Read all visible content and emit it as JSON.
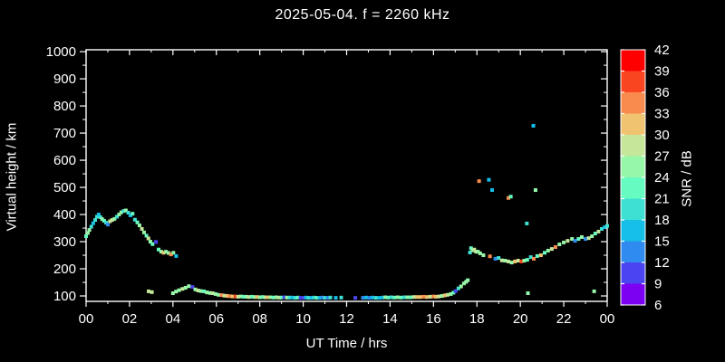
{
  "title": "2025-05-04. f = 2260 kHz",
  "chart_data": {
    "type": "scatter",
    "xlabel": "UT Time / hrs",
    "ylabel": "Virtual height / km",
    "colorbar_label": "SNR / dB",
    "xlim": [
      0,
      24
    ],
    "ylim": [
      80,
      1007
    ],
    "x_major_ticks": [
      0,
      2,
      4,
      6,
      8,
      10,
      12,
      14,
      16,
      18,
      20,
      22,
      24
    ],
    "x_tick_labels": [
      "00",
      "02",
      "04",
      "06",
      "08",
      "10",
      "12",
      "14",
      "16",
      "18",
      "20",
      "22",
      "00"
    ],
    "x_minor_ticks": [
      1,
      3,
      5,
      7,
      9,
      11,
      13,
      15,
      17,
      19,
      21,
      23
    ],
    "y_major_ticks": [
      100,
      200,
      300,
      400,
      500,
      600,
      700,
      800,
      900,
      1000
    ],
    "y_minor_ticks": [
      150,
      250,
      350,
      450,
      550,
      650,
      750,
      850,
      950
    ],
    "grid": false,
    "snr_min": 6,
    "snr_max": 42,
    "snr_step": 3,
    "colorbar_tick_labels": [
      "42",
      "39",
      "36",
      "33",
      "30",
      "27",
      "24",
      "21",
      "18",
      "15",
      "12",
      "9",
      "6"
    ],
    "snr_colors_low_to_high": [
      "#7c00f2",
      "#4a45f0",
      "#2f8bef",
      "#15bfe8",
      "#3ee0d3",
      "#65fbc1",
      "#97f7a8",
      "#c6e699",
      "#efc36f",
      "#f98b4e",
      "#fa4521",
      "#fe0000"
    ],
    "background_color": "#000000",
    "axis_color": "#ffffff",
    "points_t_h_snr": [
      [
        0.0,
        320,
        22
      ],
      [
        0.08,
        332,
        25
      ],
      [
        0.15,
        343,
        25
      ],
      [
        0.24,
        355,
        19
      ],
      [
        0.33,
        368,
        16
      ],
      [
        0.42,
        380,
        19
      ],
      [
        0.5,
        392,
        19
      ],
      [
        0.58,
        400,
        16
      ],
      [
        0.66,
        390,
        19
      ],
      [
        0.74,
        383,
        25
      ],
      [
        0.83,
        377,
        22
      ],
      [
        0.92,
        370,
        19
      ],
      [
        1.0,
        363,
        13
      ],
      [
        1.1,
        375,
        28
      ],
      [
        1.2,
        380,
        28
      ],
      [
        1.31,
        384,
        25
      ],
      [
        1.42,
        392,
        19
      ],
      [
        1.52,
        400,
        25
      ],
      [
        1.62,
        408,
        25
      ],
      [
        1.73,
        413,
        19
      ],
      [
        1.83,
        415,
        25
      ],
      [
        1.94,
        407,
        19
      ],
      [
        2.04,
        397,
        16
      ],
      [
        2.14,
        403,
        22
      ],
      [
        2.25,
        381,
        19
      ],
      [
        2.36,
        371,
        22
      ],
      [
        2.46,
        360,
        25
      ],
      [
        2.57,
        347,
        28
      ],
      [
        2.67,
        334,
        25
      ],
      [
        2.78,
        322,
        22
      ],
      [
        2.87,
        312,
        28
      ],
      [
        2.96,
        300,
        25
      ],
      [
        3.06,
        291,
        22
      ],
      [
        3.22,
        299,
        10
      ],
      [
        3.34,
        271,
        22
      ],
      [
        3.46,
        263,
        25
      ],
      [
        3.57,
        259,
        31
      ],
      [
        3.68,
        263,
        25
      ],
      [
        3.8,
        258,
        25
      ],
      [
        3.91,
        253,
        34
      ],
      [
        4.02,
        259,
        25
      ],
      [
        4.15,
        247,
        16
      ],
      [
        2.88,
        117,
        28
      ],
      [
        3.03,
        114,
        28
      ],
      [
        4.0,
        110,
        25
      ],
      [
        4.14,
        116,
        25
      ],
      [
        4.28,
        121,
        25
      ],
      [
        4.44,
        126,
        28
      ],
      [
        4.58,
        130,
        25
      ],
      [
        4.73,
        136,
        25
      ],
      [
        4.9,
        133,
        10
      ],
      [
        5.03,
        124,
        25
      ],
      [
        5.16,
        120,
        28
      ],
      [
        5.29,
        118,
        25
      ],
      [
        5.43,
        117,
        22
      ],
      [
        5.56,
        113,
        25
      ],
      [
        5.7,
        111,
        25
      ],
      [
        5.83,
        110,
        28
      ],
      [
        5.96,
        107,
        25
      ],
      [
        6.1,
        104,
        25
      ],
      [
        6.24,
        103,
        34
      ],
      [
        6.37,
        101,
        28
      ],
      [
        6.5,
        100,
        31
      ],
      [
        6.62,
        99,
        34
      ],
      [
        6.75,
        98,
        31
      ],
      [
        6.88,
        98,
        37
      ],
      [
        7.0,
        97,
        28
      ],
      [
        7.13,
        98,
        25
      ],
      [
        7.25,
        97,
        22
      ],
      [
        7.38,
        97,
        25
      ],
      [
        7.5,
        96,
        28
      ],
      [
        7.63,
        97,
        22
      ],
      [
        7.75,
        96,
        25
      ],
      [
        7.88,
        96,
        31
      ],
      [
        8.0,
        95,
        25
      ],
      [
        8.13,
        96,
        22
      ],
      [
        8.25,
        95,
        28
      ],
      [
        8.38,
        95,
        31
      ],
      [
        8.5,
        95,
        25
      ],
      [
        8.63,
        94,
        22
      ],
      [
        8.75,
        95,
        25
      ],
      [
        8.88,
        94,
        28
      ],
      [
        9.0,
        94,
        22
      ],
      [
        9.13,
        95,
        10
      ],
      [
        9.25,
        94,
        25
      ],
      [
        9.38,
        94,
        19
      ],
      [
        9.5,
        94,
        16
      ],
      [
        9.63,
        93,
        19
      ],
      [
        9.75,
        94,
        22
      ],
      [
        9.88,
        93,
        10
      ],
      [
        10.0,
        93,
        10
      ],
      [
        10.13,
        94,
        16
      ],
      [
        10.25,
        93,
        19
      ],
      [
        10.38,
        93,
        16
      ],
      [
        10.5,
        94,
        19
      ],
      [
        10.63,
        93,
        22
      ],
      [
        10.75,
        93,
        16
      ],
      [
        10.88,
        94,
        13
      ],
      [
        11.0,
        93,
        19
      ],
      [
        11.13,
        93,
        13
      ],
      [
        11.25,
        94,
        19
      ],
      [
        11.5,
        93,
        16
      ],
      [
        11.75,
        94,
        19
      ],
      [
        12.4,
        93,
        10
      ],
      [
        12.75,
        93,
        13
      ],
      [
        12.9,
        94,
        16
      ],
      [
        13.05,
        93,
        13
      ],
      [
        13.2,
        94,
        16
      ],
      [
        13.35,
        93,
        19
      ],
      [
        13.5,
        93,
        16
      ],
      [
        13.65,
        94,
        16
      ],
      [
        13.78,
        95,
        25
      ],
      [
        13.92,
        94,
        22
      ],
      [
        14.06,
        95,
        19
      ],
      [
        14.2,
        94,
        22
      ],
      [
        14.35,
        95,
        25
      ],
      [
        14.5,
        94,
        22
      ],
      [
        14.65,
        95,
        19
      ],
      [
        14.8,
        95,
        25
      ],
      [
        14.95,
        95,
        22
      ],
      [
        15.1,
        96,
        28
      ],
      [
        15.25,
        96,
        31
      ],
      [
        15.4,
        96,
        31
      ],
      [
        15.55,
        97,
        34
      ],
      [
        15.7,
        96,
        31
      ],
      [
        15.85,
        97,
        28
      ],
      [
        16.0,
        98,
        34
      ],
      [
        16.12,
        97,
        31
      ],
      [
        16.25,
        98,
        28
      ],
      [
        16.4,
        100,
        25
      ],
      [
        16.52,
        102,
        31
      ],
      [
        16.65,
        104,
        28
      ],
      [
        16.8,
        107,
        25
      ],
      [
        16.92,
        112,
        22
      ],
      [
        17.02,
        118,
        10
      ],
      [
        17.15,
        128,
        19
      ],
      [
        17.27,
        135,
        25
      ],
      [
        17.4,
        146,
        25
      ],
      [
        17.5,
        152,
        25
      ],
      [
        17.58,
        158,
        25
      ],
      [
        17.68,
        260,
        19
      ],
      [
        17.73,
        276,
        22
      ],
      [
        17.8,
        268,
        25
      ],
      [
        17.88,
        271,
        28
      ],
      [
        17.96,
        263,
        28
      ],
      [
        18.05,
        263,
        25
      ],
      [
        18.15,
        257,
        25
      ],
      [
        18.3,
        250,
        25
      ],
      [
        18.6,
        246,
        34
      ],
      [
        18.85,
        237,
        13
      ],
      [
        19.0,
        240,
        19
      ],
      [
        19.15,
        231,
        28
      ],
      [
        19.3,
        230,
        25
      ],
      [
        19.45,
        227,
        28
      ],
      [
        19.6,
        223,
        25
      ],
      [
        19.75,
        227,
        31
      ],
      [
        19.9,
        230,
        28
      ],
      [
        20.05,
        227,
        37
      ],
      [
        20.18,
        230,
        25
      ],
      [
        20.32,
        233,
        22
      ],
      [
        20.48,
        243,
        19
      ],
      [
        20.62,
        237,
        34
      ],
      [
        20.78,
        247,
        22
      ],
      [
        20.95,
        250,
        31
      ],
      [
        21.12,
        259,
        22
      ],
      [
        21.28,
        267,
        25
      ],
      [
        21.45,
        273,
        28
      ],
      [
        21.62,
        280,
        34
      ],
      [
        21.8,
        290,
        25
      ],
      [
        22.0,
        297,
        25
      ],
      [
        22.18,
        303,
        28
      ],
      [
        22.38,
        310,
        25
      ],
      [
        22.52,
        303,
        13
      ],
      [
        22.68,
        310,
        22
      ],
      [
        22.83,
        317,
        25
      ],
      [
        23.0,
        310,
        13
      ],
      [
        23.15,
        313,
        28
      ],
      [
        23.3,
        320,
        25
      ],
      [
        23.45,
        330,
        22
      ],
      [
        23.6,
        337,
        28
      ],
      [
        23.75,
        347,
        19
      ],
      [
        23.88,
        353,
        16
      ],
      [
        24.0,
        358,
        19
      ],
      [
        18.1,
        523,
        34
      ],
      [
        18.55,
        528,
        16
      ],
      [
        18.7,
        490,
        16
      ],
      [
        19.45,
        461,
        34
      ],
      [
        19.56,
        466,
        22
      ],
      [
        20.3,
        367,
        19
      ],
      [
        20.6,
        727,
        16
      ],
      [
        20.7,
        490,
        25
      ],
      [
        20.35,
        110,
        25
      ],
      [
        23.4,
        117,
        25
      ]
    ]
  }
}
